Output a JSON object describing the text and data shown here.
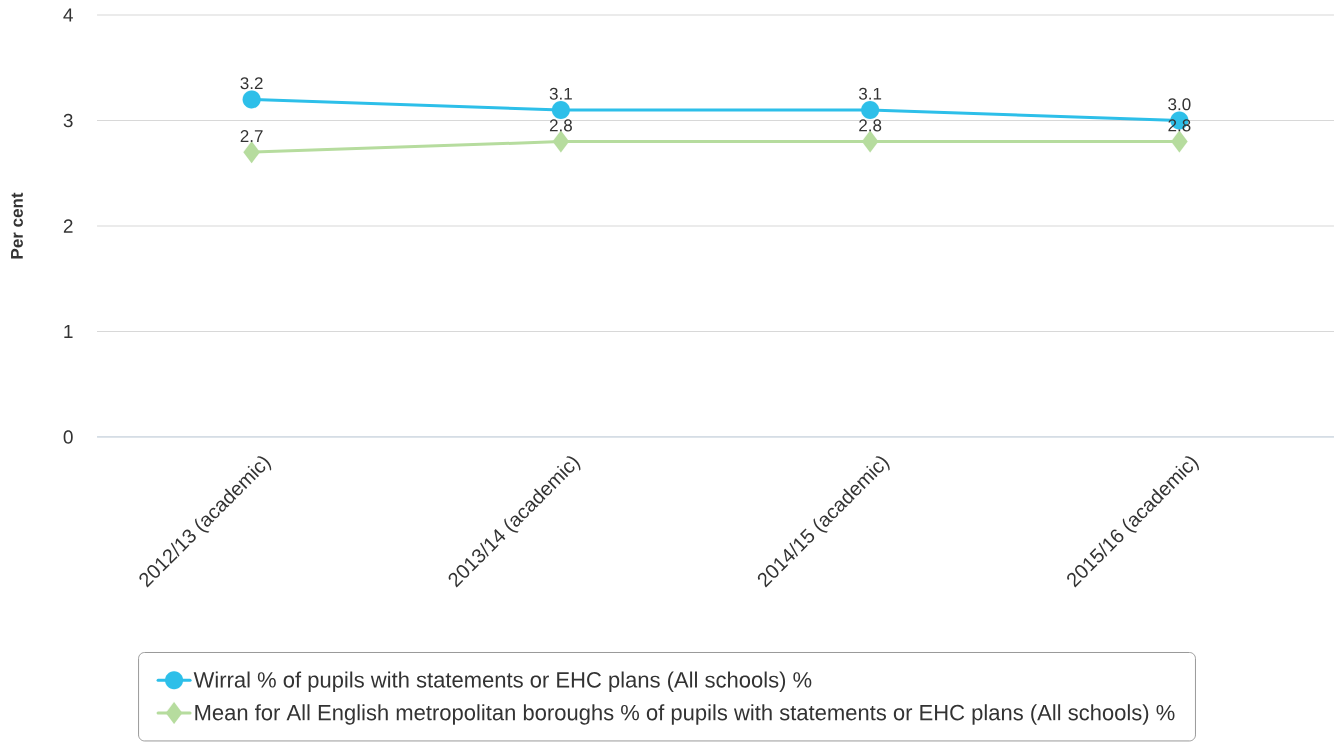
{
  "chart_data": {
    "type": "line",
    "ylabel": "Per cent",
    "categories": [
      "2012/13 (academic)",
      "2013/14 (academic)",
      "2014/15 (academic)",
      "2015/16 (academic)"
    ],
    "series": [
      {
        "name": "Wirral % of pupils with statements or EHC plans (All schools) %",
        "color": "#2dbfe9",
        "marker": "circle",
        "values": [
          3.2,
          3.1,
          3.1,
          3.0
        ],
        "value_labels": [
          "3.2",
          "3.1",
          "3.1",
          "3.0"
        ]
      },
      {
        "name": "Mean for All English metropolitan boroughs % of pupils with statements or EHC plans (All schools) %",
        "color": "#b6dc9e",
        "marker": "diamond",
        "values": [
          2.7,
          2.8,
          2.8,
          2.8
        ],
        "value_labels": [
          "2.7",
          "2.8",
          "2.8",
          "2.8"
        ]
      }
    ],
    "ylim": [
      0,
      4
    ],
    "yticks": [
      0,
      1,
      2,
      3,
      4
    ],
    "grid": "y",
    "legend": "bottom",
    "line_style": "solid"
  }
}
